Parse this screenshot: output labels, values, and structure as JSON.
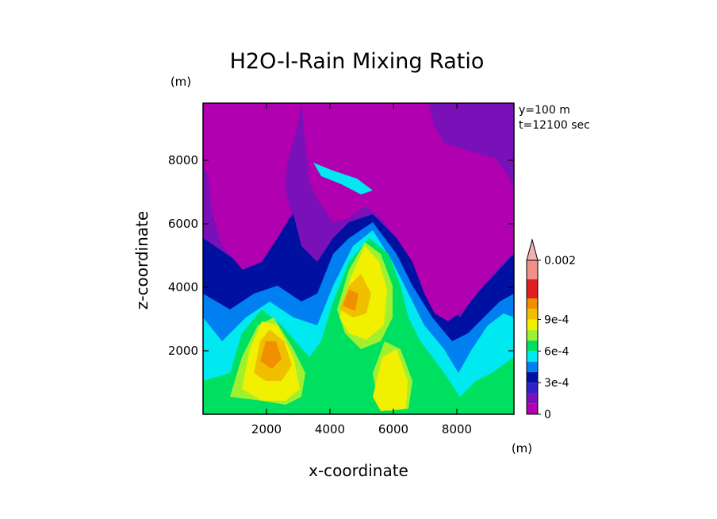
{
  "chart_data": {
    "type": "heatmap",
    "title": "H2O-l-Rain Mixing Ratio",
    "xlabel": "x-coordinate",
    "ylabel": "z-coordinate",
    "x_unit": "(m)",
    "y_unit": "(m)",
    "annotations": [
      "y=100 m",
      "t=12100 sec"
    ],
    "xlim": [
      0,
      9800
    ],
    "ylim": [
      0,
      9800
    ],
    "x_ticks": [
      2000,
      4000,
      6000,
      8000
    ],
    "y_ticks": [
      2000,
      4000,
      6000,
      8000
    ],
    "x_tick_labels": [
      "2000",
      "4000",
      "6000",
      "8000"
    ],
    "y_tick_labels": [
      "2000",
      "4000",
      "6000",
      "8000"
    ],
    "grid": false,
    "colorbar": {
      "levels": [
        0,
        0.0001,
        0.0002,
        0.0003,
        0.0004,
        0.0005,
        0.0006,
        0.0007,
        0.0008,
        0.0009,
        0.001,
        0.0015,
        0.002
      ],
      "colors": [
        "#b000b0",
        "#7a10b8",
        "#3020c8",
        "#0010a0",
        "#0080f0",
        "#00e8f0",
        "#00e060",
        "#a0f030",
        "#f0f000",
        "#f0c000",
        "#f09000",
        "#e02020",
        "#f09088"
      ],
      "tick_labels": [
        {
          "level": 0,
          "label": "0"
        },
        {
          "level": 0.0003,
          "label": "3e-4"
        },
        {
          "level": 0.0006,
          "label": "6e-4"
        },
        {
          "level": 0.0009,
          "label": "9e-4"
        },
        {
          "level": 0.002,
          "label": "0.002"
        }
      ],
      "extend": "max",
      "extend_color": "#f0b0b0"
    },
    "features": [
      {
        "x": 2100,
        "z": 2200,
        "value": 0.00095
      },
      {
        "x": 4600,
        "z": 3900,
        "value": 0.0009
      },
      {
        "x": 5000,
        "z": 4400,
        "value": 0.00075
      },
      {
        "x": 5500,
        "z": 2000,
        "value": 0.0007
      },
      {
        "x": 6400,
        "z": 1000,
        "value": 0.00068
      },
      {
        "x": 3700,
        "z": 7600,
        "value": 0.00045
      },
      {
        "x": 2000,
        "z": 8000,
        "value": 0.0
      },
      {
        "x": 7200,
        "z": 7000,
        "value": 0.0
      }
    ]
  }
}
